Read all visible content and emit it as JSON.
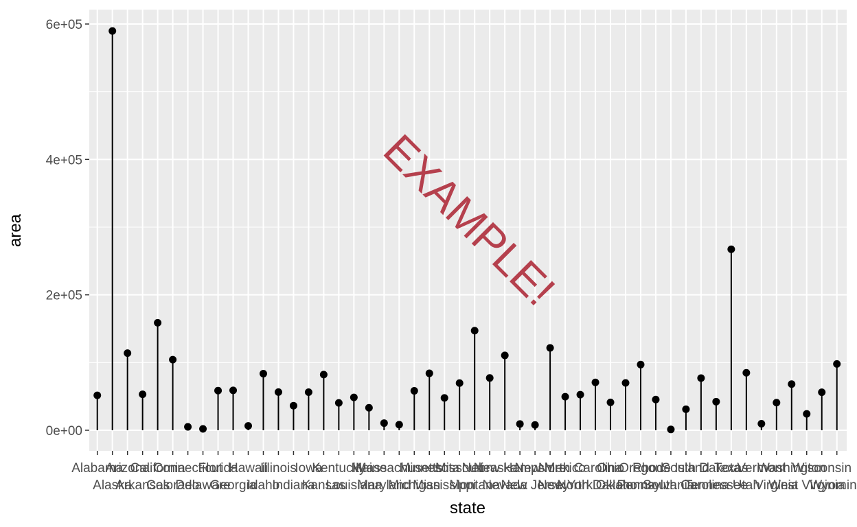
{
  "chart_data": {
    "type": "lollipop",
    "xlabel": "state",
    "ylabel": "area",
    "ylim": [
      -30000,
      620000
    ],
    "yticks": [
      0,
      200000,
      400000,
      600000
    ],
    "ytick_labels": [
      "0e+00",
      "2e+05",
      "4e+05",
      "6e+05"
    ],
    "categories": [
      "Alabama",
      "Alaska",
      "Arizona",
      "Arkansas",
      "California",
      "Colorado",
      "Connecticut",
      "Delaware",
      "Florida",
      "Georgia",
      "Hawaii",
      "Idaho",
      "Illinois",
      "Indiana",
      "Iowa",
      "Kansas",
      "Kentucky",
      "Louisiana",
      "Maine",
      "Maryland",
      "Massachusetts",
      "Michigan",
      "Minnesota",
      "Mississippi",
      "Missouri",
      "Montana",
      "Nebraska",
      "Nevada",
      "New Hampshire",
      "New Jersey",
      "New Mexico",
      "New York",
      "North Carolina",
      "North Dakota",
      "Ohio",
      "Oklahoma",
      "Oregon",
      "Pennsylvania",
      "Rhode Island",
      "South Carolina",
      "South Dakota",
      "Tennessee",
      "Texas",
      "Utah",
      "Vermont",
      "Virginia",
      "Washington",
      "West Virginia",
      "Wisconsin",
      "Wyoming"
    ],
    "values": [
      51609,
      589757,
      113909,
      53104,
      158693,
      104247,
      5009,
      2057,
      58560,
      58876,
      6450,
      83557,
      56400,
      36291,
      56290,
      82264,
      40395,
      48523,
      33215,
      10577,
      8257,
      58216,
      84068,
      47716,
      69686,
      147138,
      77227,
      110540,
      9304,
      7836,
      121666,
      49576,
      52586,
      70665,
      41222,
      69919,
      96981,
      45333,
      1214,
      31055,
      77047,
      42244,
      267339,
      84916,
      9609,
      40815,
      68192,
      24181,
      56154,
      97914
    ],
    "grid": true,
    "background": "#ebebeb",
    "grid_color": "#ffffff",
    "stem_color": "#000000",
    "point_color": "#000000",
    "watermark": {
      "text": "EXAMPLE!",
      "color": "#b5404d"
    }
  }
}
